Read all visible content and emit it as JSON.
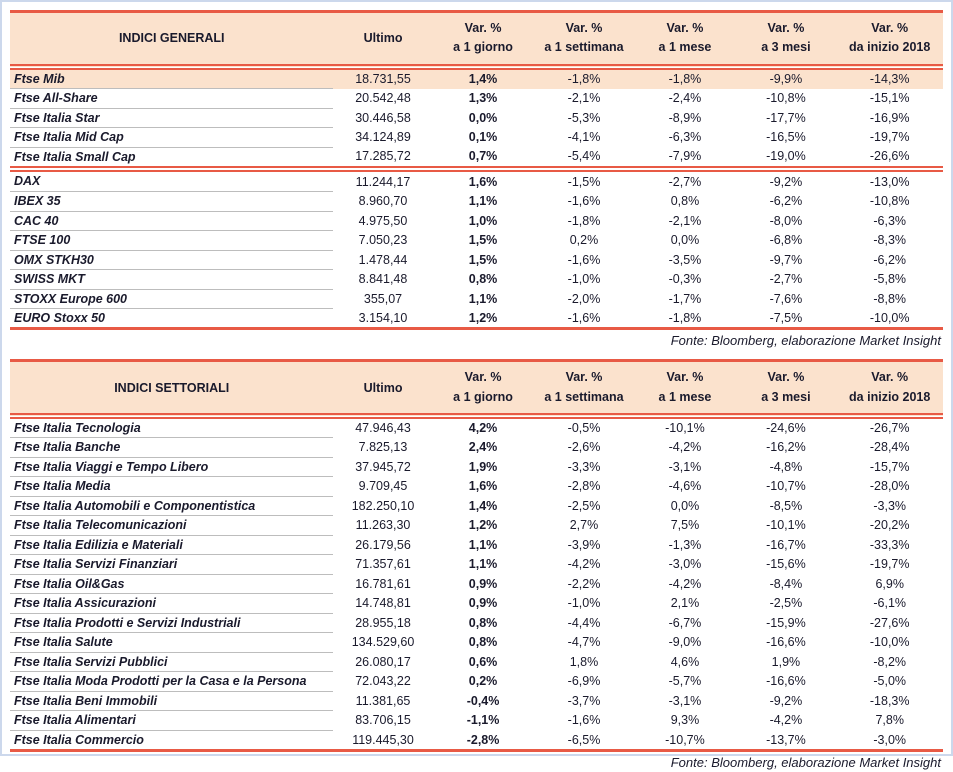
{
  "fonte": "Fonte: Bloomberg, elaborazione Market Insight",
  "colors": {
    "accent_red": "#e85a45",
    "header_peach": "#fbe2cd",
    "text_navy": "#1a1a2c",
    "row_separator_gray": "#bdbdbd",
    "frame_blue": "#ccd8ec"
  },
  "headers_shared": {
    "ultimo": "Ultimo",
    "var_label": "Var. %",
    "periods": [
      "a 1 giorno",
      "a 1 settimana",
      "a 1 mese",
      "a 3 mesi",
      "da inizio 2018"
    ]
  },
  "tables": [
    {
      "title": "INDICI GENERALI",
      "groups": [
        {
          "highlight_first": true,
          "rows": [
            {
              "name": "Ftse Mib",
              "ultimo": "18.731,55",
              "d1": "1,4%",
              "w1": "-1,8%",
              "m1": "-1,8%",
              "m3": "-9,9%",
              "ytd": "-14,3%"
            },
            {
              "name": "Ftse All-Share",
              "ultimo": "20.542,48",
              "d1": "1,3%",
              "w1": "-2,1%",
              "m1": "-2,4%",
              "m3": "-10,8%",
              "ytd": "-15,1%"
            },
            {
              "name": "Ftse Italia Star",
              "ultimo": "30.446,58",
              "d1": "0,0%",
              "w1": "-5,3%",
              "m1": "-8,9%",
              "m3": "-17,7%",
              "ytd": "-16,9%"
            },
            {
              "name": "Ftse Italia Mid Cap",
              "ultimo": "34.124,89",
              "d1": "0,1%",
              "w1": "-4,1%",
              "m1": "-6,3%",
              "m3": "-16,5%",
              "ytd": "-19,7%"
            },
            {
              "name": "Ftse Italia Small Cap",
              "ultimo": "17.285,72",
              "d1": "0,7%",
              "w1": "-5,4%",
              "m1": "-7,9%",
              "m3": "-19,0%",
              "ytd": "-26,6%"
            }
          ]
        },
        {
          "highlight_first": false,
          "rows": [
            {
              "name": "DAX",
              "ultimo": "11.244,17",
              "d1": "1,6%",
              "w1": "-1,5%",
              "m1": "-2,7%",
              "m3": "-9,2%",
              "ytd": "-13,0%"
            },
            {
              "name": "IBEX 35",
              "ultimo": "8.960,70",
              "d1": "1,1%",
              "w1": "-1,6%",
              "m1": "0,8%",
              "m3": "-6,2%",
              "ytd": "-10,8%"
            },
            {
              "name": "CAC 40",
              "ultimo": "4.975,50",
              "d1": "1,0%",
              "w1": "-1,8%",
              "m1": "-2,1%",
              "m3": "-8,0%",
              "ytd": "-6,3%"
            },
            {
              "name": "FTSE 100",
              "ultimo": "7.050,23",
              "d1": "1,5%",
              "w1": "0,2%",
              "m1": "0,0%",
              "m3": "-6,8%",
              "ytd": "-8,3%"
            },
            {
              "name": "OMX STKH30",
              "ultimo": "1.478,44",
              "d1": "1,5%",
              "w1": "-1,6%",
              "m1": "-3,5%",
              "m3": "-9,7%",
              "ytd": "-6,2%"
            },
            {
              "name": "SWISS MKT",
              "ultimo": "8.841,48",
              "d1": "0,8%",
              "w1": "-1,0%",
              "m1": "-0,3%",
              "m3": "-2,7%",
              "ytd": "-5,8%"
            },
            {
              "name": "STOXX Europe 600",
              "ultimo": "355,07",
              "d1": "1,1%",
              "w1": "-2,0%",
              "m1": "-1,7%",
              "m3": "-7,6%",
              "ytd": "-8,8%"
            },
            {
              "name": "EURO Stoxx 50",
              "ultimo": "3.154,10",
              "d1": "1,2%",
              "w1": "-1,6%",
              "m1": "-1,8%",
              "m3": "-7,5%",
              "ytd": "-10,0%"
            }
          ]
        }
      ]
    },
    {
      "title": "INDICI SETTORIALI",
      "groups": [
        {
          "highlight_first": false,
          "rows": [
            {
              "name": "Ftse Italia Tecnologia",
              "ultimo": "47.946,43",
              "d1": "4,2%",
              "w1": "-0,5%",
              "m1": "-10,1%",
              "m3": "-24,6%",
              "ytd": "-26,7%"
            },
            {
              "name": "Ftse Italia Banche",
              "ultimo": "7.825,13",
              "d1": "2,4%",
              "w1": "-2,6%",
              "m1": "-4,2%",
              "m3": "-16,2%",
              "ytd": "-28,4%"
            },
            {
              "name": "Ftse Italia Viaggi e Tempo Libero",
              "ultimo": "37.945,72",
              "d1": "1,9%",
              "w1": "-3,3%",
              "m1": "-3,1%",
              "m3": "-4,8%",
              "ytd": "-15,7%"
            },
            {
              "name": "Ftse Italia Media",
              "ultimo": "9.709,45",
              "d1": "1,6%",
              "w1": "-2,8%",
              "m1": "-4,6%",
              "m3": "-10,7%",
              "ytd": "-28,0%"
            },
            {
              "name": "Ftse Italia Automobili e Componentistica",
              "ultimo": "182.250,10",
              "d1": "1,4%",
              "w1": "-2,5%",
              "m1": "0,0%",
              "m3": "-8,5%",
              "ytd": "-3,3%"
            },
            {
              "name": "Ftse Italia Telecomunicazioni",
              "ultimo": "11.263,30",
              "d1": "1,2%",
              "w1": "2,7%",
              "m1": "7,5%",
              "m3": "-10,1%",
              "ytd": "-20,2%"
            },
            {
              "name": "Ftse Italia Edilizia e Materiali",
              "ultimo": "26.179,56",
              "d1": "1,1%",
              "w1": "-3,9%",
              "m1": "-1,3%",
              "m3": "-16,7%",
              "ytd": "-33,3%"
            },
            {
              "name": "Ftse Italia Servizi Finanziari",
              "ultimo": "71.357,61",
              "d1": "1,1%",
              "w1": "-4,2%",
              "m1": "-3,0%",
              "m3": "-15,6%",
              "ytd": "-19,7%"
            },
            {
              "name": "Ftse Italia Oil&Gas",
              "ultimo": "16.781,61",
              "d1": "0,9%",
              "w1": "-2,2%",
              "m1": "-4,2%",
              "m3": "-8,4%",
              "ytd": "6,9%"
            },
            {
              "name": "Ftse Italia Assicurazioni",
              "ultimo": "14.748,81",
              "d1": "0,9%",
              "w1": "-1,0%",
              "m1": "2,1%",
              "m3": "-2,5%",
              "ytd": "-6,1%"
            },
            {
              "name": "Ftse Italia Prodotti e Servizi Industriali",
              "ultimo": "28.955,18",
              "d1": "0,8%",
              "w1": "-4,4%",
              "m1": "-6,7%",
              "m3": "-15,9%",
              "ytd": "-27,6%"
            },
            {
              "name": "Ftse Italia Salute",
              "ultimo": "134.529,60",
              "d1": "0,8%",
              "w1": "-4,7%",
              "m1": "-9,0%",
              "m3": "-16,6%",
              "ytd": "-10,0%"
            },
            {
              "name": "Ftse Italia Servizi Pubblici",
              "ultimo": "26.080,17",
              "d1": "0,6%",
              "w1": "1,8%",
              "m1": "4,6%",
              "m3": "1,9%",
              "ytd": "-8,2%"
            },
            {
              "name": "Ftse Italia Moda Prodotti per la Casa e la Persona",
              "ultimo": "72.043,22",
              "d1": "0,2%",
              "w1": "-6,9%",
              "m1": "-5,7%",
              "m3": "-16,6%",
              "ytd": "-5,0%"
            },
            {
              "name": "Ftse Italia Beni Immobili",
              "ultimo": "11.381,65",
              "d1": "-0,4%",
              "w1": "-3,7%",
              "m1": "-3,1%",
              "m3": "-9,2%",
              "ytd": "-18,3%"
            },
            {
              "name": "Ftse Italia Alimentari",
              "ultimo": "83.706,15",
              "d1": "-1,1%",
              "w1": "-1,6%",
              "m1": "9,3%",
              "m3": "-4,2%",
              "ytd": "7,8%"
            },
            {
              "name": "Ftse Italia Commercio",
              "ultimo": "119.445,30",
              "d1": "-2,8%",
              "w1": "-6,5%",
              "m1": "-10,7%",
              "m3": "-13,7%",
              "ytd": "-3,0%"
            }
          ]
        }
      ]
    }
  ]
}
